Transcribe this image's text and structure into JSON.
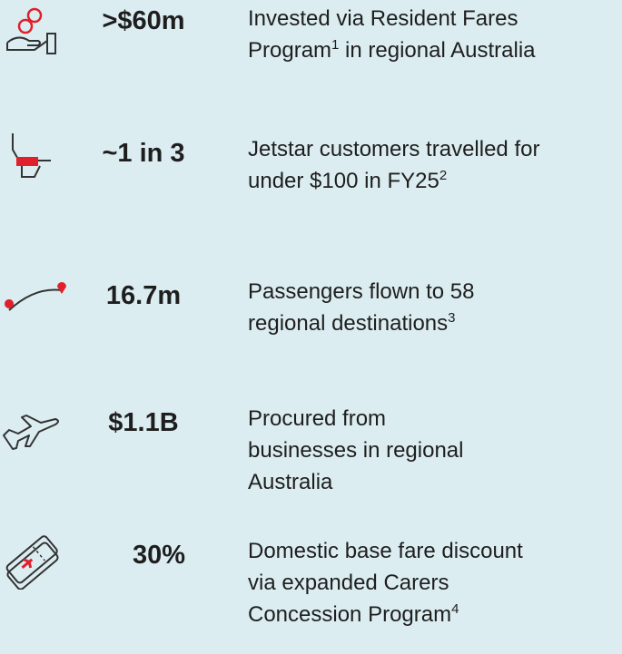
{
  "rows": [
    {
      "stat": ">$60m",
      "lines": [
        [
          {
            "t": "Invested via Resident Fares"
          }
        ],
        [
          {
            "t": "Program"
          },
          {
            "sup": "1"
          },
          {
            "t": " in regional Australia"
          }
        ]
      ]
    },
    {
      "stat": "~1 in 3",
      "lines": [
        [
          {
            "t": "Jetstar customers travelled for"
          }
        ],
        [
          {
            "t": "under $100 in FY25"
          },
          {
            "sup": "2"
          }
        ]
      ]
    },
    {
      "stat": "16.7m",
      "lines": [
        [
          {
            "t": "Passengers flown to 58"
          }
        ],
        [
          {
            "t": "regional destinations"
          },
          {
            "sup": "3"
          }
        ]
      ]
    },
    {
      "stat": "$1.1B",
      "lines": [
        [
          {
            "t": "Procured from"
          }
        ],
        [
          {
            "t": "businesses in regional"
          }
        ],
        [
          {
            "t": "Australia"
          }
        ]
      ]
    },
    {
      "stat": "30%",
      "lines": [
        [
          {
            "t": "Domestic base fare discount"
          }
        ],
        [
          {
            "t": "via expanded Carers"
          }
        ],
        [
          {
            "t": "Concession Program"
          },
          {
            "sup": "4"
          }
        ]
      ]
    }
  ]
}
